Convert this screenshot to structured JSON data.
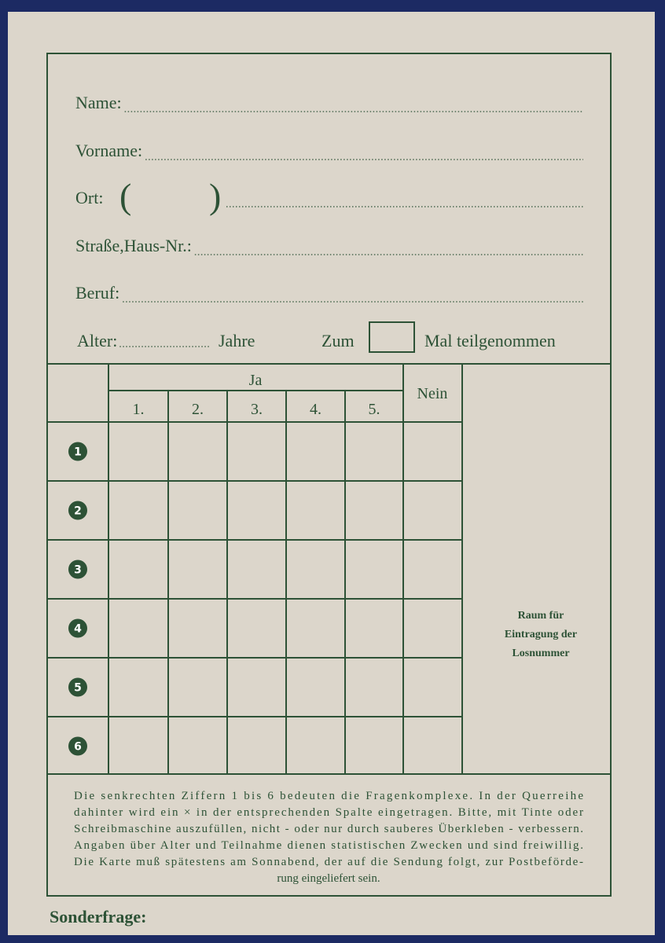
{
  "fields": [
    "Name:",
    "Vorname:",
    "Ort:",
    "Straße,Haus-Nr.:",
    "Beruf:"
  ],
  "ort_brackets": [
    "(",
    ")"
  ],
  "age_row": {
    "alter": "Alter:",
    "jahre": "Jahre",
    "zum": "Zum",
    "mal": "Mal teilgenommen"
  },
  "table": {
    "ja": "Ja",
    "columns": [
      "1.",
      "2.",
      "3.",
      "4.",
      "5."
    ],
    "nein": "Nein",
    "rows": [
      "1",
      "2",
      "3",
      "4",
      "5",
      "6"
    ]
  },
  "side_note": [
    "Raum für",
    "Eintragung der",
    "Losnummer"
  ],
  "footer": [
    "Die senkrechten Ziffern 1 bis 6 bedeuten die Fragenkomplexe. In der Querreihe",
    "dahinter wird ein × in der entsprechenden Spalte eingetragen. Bitte, mit Tinte oder",
    "Schreibmaschine auszufüllen, nicht - oder nur durch sauberes Überkleben - verbessern.",
    "Angaben über Alter und Teilnahme dienen statistischen Zwecken und sind freiwillig.",
    "Die Karte muß spätestens am Sonnabend, der auf die Sendung folgt, zur Postbeförde-",
    "rung eingeliefert sein."
  ],
  "sonderfrage": "Sonderfrage:"
}
